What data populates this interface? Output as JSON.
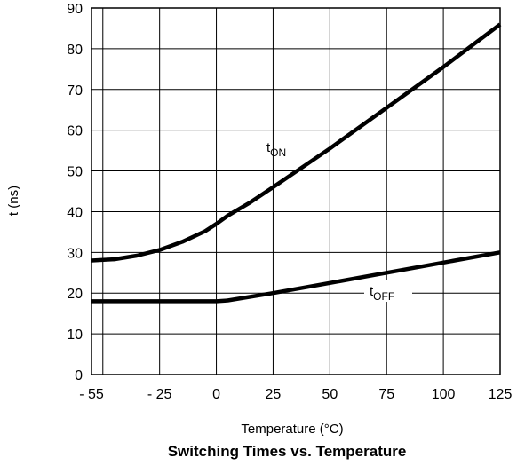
{
  "chart_data": {
    "type": "line",
    "title": "Switching Times vs. Temperature",
    "xlabel": "Temperature (°C)",
    "ylabel": "t (ns)",
    "xlim": [
      -55,
      125
    ],
    "ylim": [
      0,
      90
    ],
    "x_ticks": [
      -55,
      -25,
      0,
      25,
      50,
      75,
      100,
      125
    ],
    "x_tick_labels": [
      "- 55",
      "- 25",
      "0",
      "25",
      "50",
      "75",
      "100",
      "125"
    ],
    "y_ticks": [
      0,
      10,
      20,
      30,
      40,
      50,
      60,
      70,
      80,
      90
    ],
    "y_tick_labels": [
      "0",
      "10",
      "20",
      "30",
      "40",
      "50",
      "60",
      "70",
      "80",
      "90"
    ],
    "grid": true,
    "series": [
      {
        "name": "tON",
        "label_main": "t",
        "label_sub": "ON",
        "x": [
          -55,
          -45,
          -35,
          -25,
          -15,
          -5,
          0,
          5,
          15,
          25,
          50,
          75,
          100,
          125
        ],
        "y": [
          28,
          28.3,
          29.2,
          30.6,
          32.6,
          35.2,
          37,
          39,
          42.3,
          46,
          55.5,
          65.5,
          75.5,
          86
        ]
      },
      {
        "name": "tOFF",
        "label_main": "t",
        "label_sub": "OFF",
        "x": [
          -55,
          0,
          5,
          25,
          50,
          75,
          100,
          125
        ],
        "y": [
          18,
          18,
          18.2,
          20,
          22.5,
          25,
          27.5,
          30
        ]
      }
    ]
  }
}
